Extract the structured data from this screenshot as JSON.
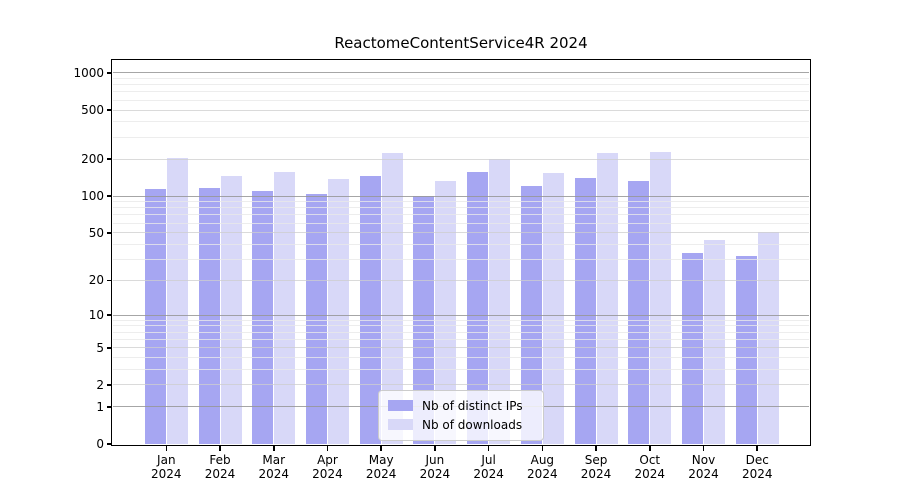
{
  "title": "ReactomeContentService4R 2024",
  "legend": {
    "items": [
      {
        "label": "Nb of distinct IPs",
        "color": "#a6a6f2"
      },
      {
        "label": "Nb of downloads",
        "color": "#d8d8f8"
      }
    ]
  },
  "chart_data": {
    "type": "bar",
    "title": "ReactomeContentService4R 2024",
    "categories": [
      "Jan 2024",
      "Feb 2024",
      "Mar 2024",
      "Apr 2024",
      "May 2024",
      "Jun 2024",
      "Jul 2024",
      "Aug 2024",
      "Sep 2024",
      "Oct 2024",
      "Nov 2024",
      "Dec 2024"
    ],
    "x_tick_months": [
      "Jan",
      "Feb",
      "Mar",
      "Apr",
      "May",
      "Jun",
      "Jul",
      "Aug",
      "Sep",
      "Oct",
      "Nov",
      "Dec"
    ],
    "x_tick_year": "2024",
    "series": [
      {
        "name": "Nb of distinct IPs",
        "color": "#a6a6f2",
        "values": [
          114,
          117,
          110,
          104,
          145,
          101,
          158,
          121,
          141,
          133,
          34,
          32
        ]
      },
      {
        "name": "Nb of downloads",
        "color": "#d8d8f8",
        "values": [
          204,
          145,
          158,
          137,
          225,
          133,
          200,
          153,
          225,
          230,
          44,
          51
        ]
      }
    ],
    "xlabel": "",
    "ylabel": "",
    "yscale": "log1p",
    "ylim": [
      0,
      1215
    ],
    "y_ticks": [
      0,
      1,
      2,
      5,
      10,
      20,
      50,
      100,
      200,
      500,
      1000
    ],
    "grid": "horizontal major + log minor gridlines, drawn over bars",
    "legend_position": "inside plot, bottom center"
  }
}
